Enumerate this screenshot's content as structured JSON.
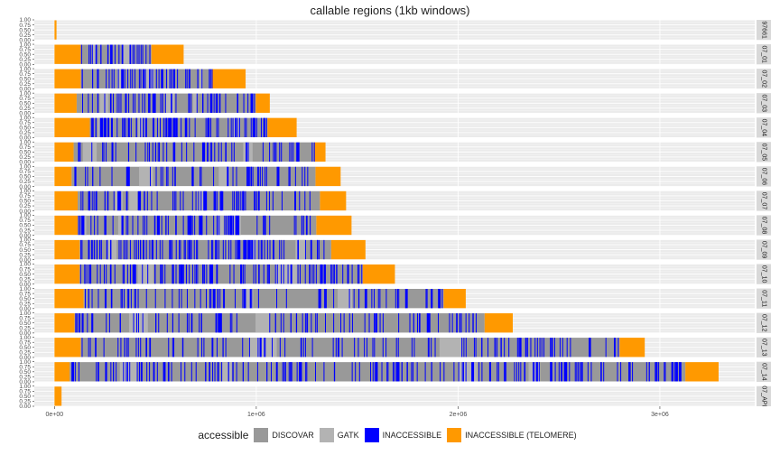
{
  "chart_data": {
    "type": "bar",
    "title": "callable regions (1kb windows)",
    "xlabel": "",
    "ylabel": "",
    "x_ticks": [
      {
        "value": 0,
        "label": "0e+00"
      },
      {
        "value": 1000000,
        "label": "1e+06"
      },
      {
        "value": 2000000,
        "label": "2e+06"
      },
      {
        "value": 3000000,
        "label": "3e+06"
      }
    ],
    "xlim": [
      -100000,
      3470000
    ],
    "y_ticks": [
      "1.00",
      "0.75",
      "0.50",
      "0.25",
      "0.00"
    ],
    "ylim": [
      0,
      1
    ],
    "grid": true,
    "legend": {
      "title": "accessible",
      "position": "bottom",
      "entries": [
        {
          "label": "DISCOVAR",
          "color": "#999999"
        },
        {
          "label": "GATK",
          "color": "#b3b3b3"
        },
        {
          "label": "INACCESSIBLE",
          "color": "#0000ff"
        },
        {
          "label": "INACCESSIBLE (TELOMERE)",
          "color": "#ff9900"
        }
      ]
    },
    "panels": [
      {
        "strip": "97661",
        "length": 10000,
        "telomere_left": 10000,
        "telomere_right": 0,
        "inaccessible_count": 0,
        "gatk_frac": 0
      },
      {
        "strip": "07_01",
        "length": 640000,
        "telomere_left": 130000,
        "telomere_right": 160000,
        "inaccessible_count": 30,
        "gatk_frac": 0.5
      },
      {
        "strip": "07_02",
        "length": 947000,
        "telomere_left": 130000,
        "telomere_right": 165000,
        "inaccessible_count": 50,
        "gatk_frac": 0.4
      },
      {
        "strip": "07_03",
        "length": 1067000,
        "telomere_left": 110000,
        "telomere_right": 70000,
        "inaccessible_count": 55,
        "gatk_frac": 0.35
      },
      {
        "strip": "07_04",
        "length": 1200000,
        "telomere_left": 175000,
        "telomere_right": 145000,
        "inaccessible_count": 80,
        "gatk_frac": 0.3
      },
      {
        "strip": "07_05",
        "length": 1343000,
        "telomere_left": 95000,
        "telomere_right": 55000,
        "inaccessible_count": 55,
        "gatk_frac": 0.2
      },
      {
        "strip": "07_06",
        "length": 1418000,
        "telomere_left": 85000,
        "telomere_right": 125000,
        "inaccessible_count": 50,
        "gatk_frac": 0.2
      },
      {
        "strip": "07_07",
        "length": 1445000,
        "telomere_left": 115000,
        "telomere_right": 130000,
        "inaccessible_count": 70,
        "gatk_frac": 0.3
      },
      {
        "strip": "07_08",
        "length": 1472000,
        "telomere_left": 115000,
        "telomere_right": 175000,
        "inaccessible_count": 70,
        "gatk_frac": 0.3
      },
      {
        "strip": "07_09",
        "length": 1541000,
        "telomere_left": 125000,
        "telomere_right": 170000,
        "inaccessible_count": 100,
        "gatk_frac": 0.35
      },
      {
        "strip": "07_10",
        "length": 1687000,
        "telomere_left": 125000,
        "telomere_right": 160000,
        "inaccessible_count": 110,
        "gatk_frac": 0.35
      },
      {
        "strip": "07_11",
        "length": 2038000,
        "telomere_left": 145000,
        "telomere_right": 110000,
        "inaccessible_count": 80,
        "gatk_frac": 0.2
      },
      {
        "strip": "07_12",
        "length": 2271000,
        "telomere_left": 100000,
        "telomere_right": 140000,
        "inaccessible_count": 90,
        "gatk_frac": 0.2
      },
      {
        "strip": "07_13",
        "length": 2925000,
        "telomere_left": 130000,
        "telomere_right": 125000,
        "inaccessible_count": 110,
        "gatk_frac": 0.15
      },
      {
        "strip": "07_14",
        "length": 3291000,
        "telomere_left": 75000,
        "telomere_right": 165000,
        "inaccessible_count": 170,
        "gatk_frac": 0.35
      },
      {
        "strip": "07_API",
        "length": 35000,
        "telomere_left": 35000,
        "telomere_right": 0,
        "inaccessible_count": 0,
        "gatk_frac": 0
      }
    ]
  }
}
